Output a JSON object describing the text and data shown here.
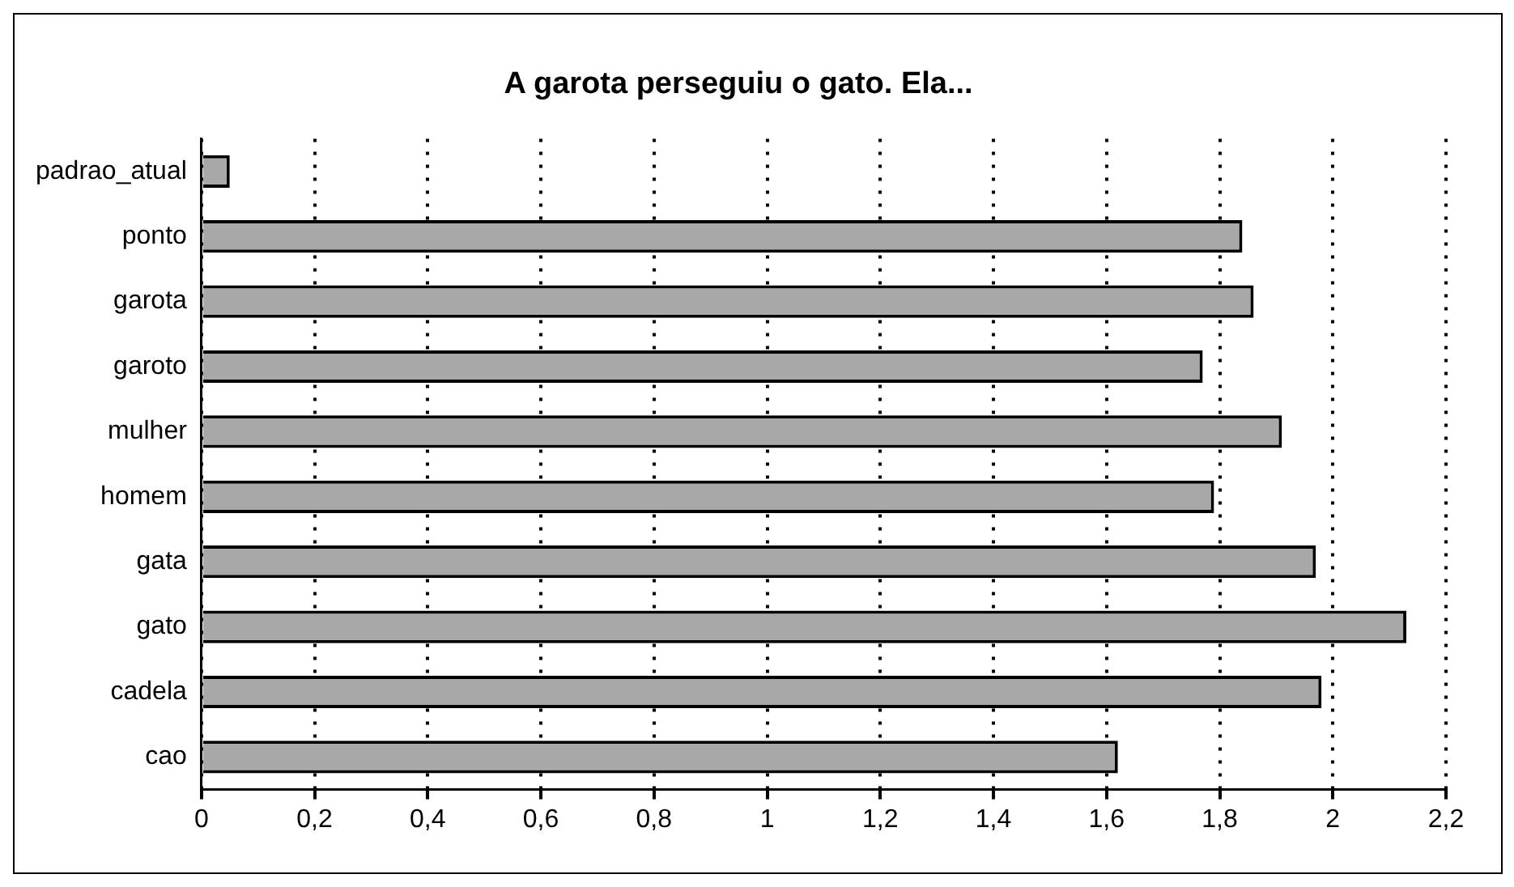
{
  "chart_data": {
    "type": "bar",
    "orientation": "horizontal",
    "title": "A garota perseguiu o gato. Ela...",
    "categories": [
      "padrao_atual",
      "ponto",
      "garota",
      "garoto",
      "mulher",
      "homem",
      "gata",
      "gato",
      "cadela",
      "cao"
    ],
    "values": [
      0.05,
      1.84,
      1.86,
      1.77,
      1.91,
      1.79,
      1.97,
      2.13,
      1.98,
      1.62
    ],
    "color": "#a8a8a8",
    "xlim": [
      0,
      2.2
    ],
    "xticks": [
      0,
      {
        "value": 0.2,
        "label": "0,2"
      },
      {
        "value": 0.4,
        "label": "0,4"
      },
      {
        "value": 0.6,
        "label": "0,6"
      },
      {
        "value": 0.8,
        "label": "0,8"
      },
      1,
      {
        "value": 1.2,
        "label": "1,2"
      },
      {
        "value": 1.4,
        "label": "1,4"
      },
      {
        "value": 1.6,
        "label": "1,6"
      },
      {
        "value": 1.8,
        "label": "1,8"
      },
      2,
      {
        "value": 2.2,
        "label": "2,2"
      }
    ],
    "grid": "x",
    "line_style": "dotted",
    "legend": false
  }
}
